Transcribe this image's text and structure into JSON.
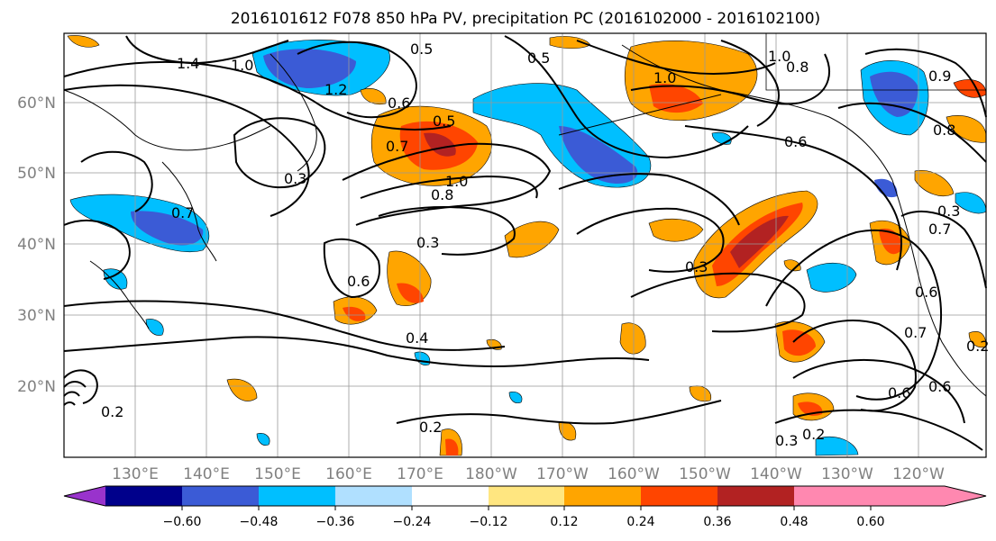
{
  "title": "2016101612 F078 850 hPa PV, precipitation PC (2016102000 - 2016102100)",
  "lat_labels": [
    "60°N",
    "50°N",
    "40°N",
    "30°N",
    "20°N"
  ],
  "lon_labels": [
    "130°E",
    "140°E",
    "150°E",
    "160°E",
    "170°E",
    "180°W",
    "170°W",
    "160°W",
    "150°W",
    "140°W",
    "130°W",
    "120°W"
  ],
  "colorbar": {
    "tick_labels": [
      "−0.60",
      "−0.48",
      "−0.36",
      "−0.24",
      "−0.12",
      "0.12",
      "0.24",
      "0.36",
      "0.48",
      "0.60"
    ],
    "colors": [
      "#9933cc",
      "#00008b",
      "#3b5bd6",
      "#00bfff",
      "#b0e0ff",
      "#ffffff",
      "#ffe680",
      "#ffa500",
      "#ff4500",
      "#b22222",
      "#ff88b0"
    ]
  },
  "contour_labels": [
    "1.4",
    "1.0",
    "0.5",
    "1.2",
    "0.6",
    "0.5",
    "0.5",
    "1.0",
    "1.0",
    "0.8",
    "0.7",
    "0.6",
    "0.7",
    "0.3",
    "0.8",
    "1.0",
    "0.7",
    "0.2",
    "0.6",
    "0.3",
    "0.3",
    "0.6",
    "0.4",
    "0.3",
    "0.6",
    "0.7",
    "0.6",
    "0.2",
    "0.3",
    "0.2",
    "0.2",
    "0.9",
    "0.8"
  ],
  "colors": {
    "coastline": "#000000",
    "contour": "#000000",
    "grid": "#999999"
  }
}
